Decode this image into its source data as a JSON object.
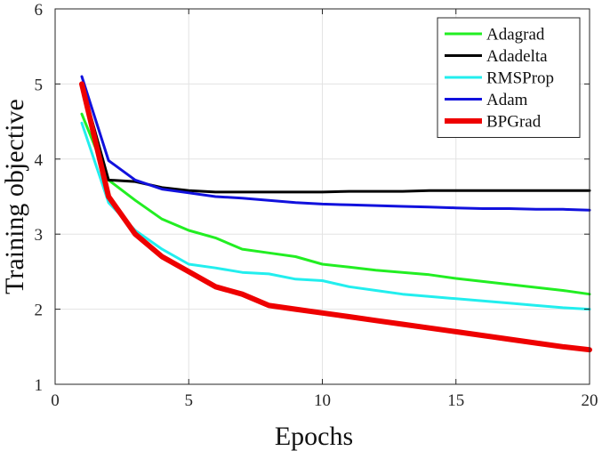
{
  "chart_data": {
    "type": "line",
    "xlabel": "Epochs",
    "ylabel": "Training objective",
    "xlim": [
      0,
      20
    ],
    "ylim": [
      1,
      6
    ],
    "xticks": [
      "0",
      "5",
      "10",
      "15",
      "20"
    ],
    "yticks": [
      "1",
      "2",
      "3",
      "4",
      "5",
      "6"
    ],
    "grid": true,
    "legend_position": "top-right",
    "x": [
      1,
      2,
      3,
      4,
      5,
      6,
      7,
      8,
      9,
      10,
      11,
      12,
      13,
      14,
      15,
      16,
      17,
      18,
      19,
      20
    ],
    "series": [
      {
        "name": "Adagrad",
        "color": "#22ee22",
        "values": [
          4.6,
          3.72,
          3.45,
          3.2,
          3.05,
          2.95,
          2.8,
          2.75,
          2.7,
          2.6,
          2.56,
          2.52,
          2.49,
          2.46,
          2.41,
          2.37,
          2.33,
          2.29,
          2.25,
          2.2
        ]
      },
      {
        "name": "Adadelta",
        "color": "#000000",
        "values": [
          5.0,
          3.72,
          3.7,
          3.62,
          3.58,
          3.56,
          3.56,
          3.56,
          3.56,
          3.56,
          3.57,
          3.57,
          3.57,
          3.58,
          3.58,
          3.58,
          3.58,
          3.58,
          3.58,
          3.58
        ]
      },
      {
        "name": "RMSProp",
        "color": "#22eeee",
        "values": [
          4.48,
          3.42,
          3.05,
          2.8,
          2.6,
          2.55,
          2.49,
          2.47,
          2.4,
          2.38,
          2.3,
          2.25,
          2.2,
          2.17,
          2.14,
          2.11,
          2.08,
          2.05,
          2.02,
          2.0
        ]
      },
      {
        "name": "Adam",
        "color": "#1111dd",
        "values": [
          5.1,
          3.98,
          3.72,
          3.6,
          3.55,
          3.5,
          3.48,
          3.45,
          3.42,
          3.4,
          3.39,
          3.38,
          3.37,
          3.36,
          3.35,
          3.34,
          3.34,
          3.33,
          3.33,
          3.32
        ]
      },
      {
        "name": "BPGrad",
        "color": "#ee0000",
        "values": [
          5.0,
          3.5,
          3.0,
          2.7,
          2.5,
          2.3,
          2.2,
          2.05,
          2.0,
          1.95,
          1.9,
          1.85,
          1.8,
          1.75,
          1.7,
          1.65,
          1.6,
          1.55,
          1.5,
          1.46
        ]
      }
    ]
  }
}
